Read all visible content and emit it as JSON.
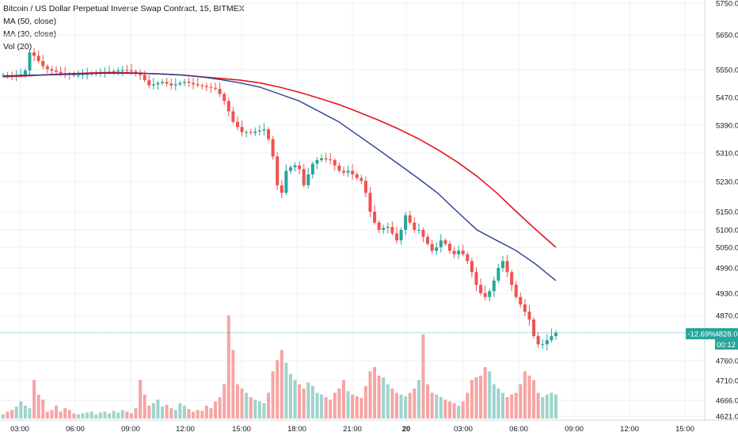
{
  "legend": {
    "symbol_line": "Bitcoin / US Dollar Perpetual Inverse Swap Contract, 15, BITMEX",
    "ma50": "MA (50, close)",
    "ma30": "MA (30, close)",
    "vol": "Vol (20)"
  },
  "badges": {
    "change": "-12.69%",
    "price": "4828.0",
    "countdown": "00:12"
  },
  "colors": {
    "up": "#26a69a",
    "down": "#ef5350",
    "up_vol": "#9ed4cc",
    "down_vol": "#f5a5a3",
    "ma50": "#e3171c",
    "ma30": "#2a3d8f",
    "grid": "#eef0f3",
    "last_price_line": "#26a69a",
    "axis_text": "#131722"
  },
  "chart_data": {
    "type": "candlestick",
    "interval": "15",
    "y_ticks": [
      "5750.0",
      "5650.0",
      "5550.0",
      "5470.0",
      "5390.0",
      "5310.0",
      "5230.0",
      "5150.0",
      "5100.0",
      "5050.0",
      "4990.0",
      "4930.0",
      "4870.0",
      "4760.0",
      "4710.0",
      "4666.0",
      "4621.0"
    ],
    "x_ticks": [
      "03:00",
      "06:00",
      "09:00",
      "12:00",
      "15:00",
      "18:00",
      "21:00",
      "20",
      "03:00",
      "06:00",
      "09:00",
      "12:00",
      "15:00"
    ],
    "last_price": 4828.0,
    "price_path": [
      5535,
      5533,
      5532,
      5534,
      5536,
      5548,
      5600,
      5590,
      5575,
      5560,
      5552,
      5548,
      5544,
      5540,
      5538,
      5536,
      5534,
      5535,
      5537,
      5538,
      5540,
      5541,
      5542,
      5543,
      5544,
      5546,
      5548,
      5549,
      5548,
      5545,
      5542,
      5535,
      5520,
      5505,
      5508,
      5512,
      5515,
      5510,
      5505,
      5508,
      5512,
      5515,
      5512,
      5508,
      5505,
      5503,
      5500,
      5498,
      5495,
      5480,
      5460,
      5430,
      5400,
      5385,
      5370,
      5370,
      5368,
      5372,
      5375,
      5378,
      5350,
      5300,
      5220,
      5200,
      5260,
      5270,
      5275,
      5265,
      5220,
      5250,
      5280,
      5290,
      5295,
      5292,
      5290,
      5275,
      5260,
      5255,
      5260,
      5250,
      5240,
      5232,
      5200,
      5150,
      5120,
      5100,
      5105,
      5108,
      5090,
      5070,
      5100,
      5140,
      5120,
      5100,
      5100,
      5080,
      5060,
      5040,
      5050,
      5070,
      5060,
      5040,
      5030,
      5040,
      5030,
      5010,
      4980,
      4950,
      4930,
      4920,
      4935,
      4960,
      4990,
      5010,
      4980,
      4950,
      4920,
      4900,
      4880,
      4860,
      4820,
      4800,
      4800,
      4810,
      4820,
      4828
    ],
    "volume": [
      5,
      8,
      10,
      14,
      20,
      15,
      12,
      45,
      28,
      22,
      8,
      10,
      15,
      8,
      12,
      10,
      6,
      5,
      6,
      7,
      8,
      5,
      7,
      8,
      6,
      9,
      7,
      10,
      8,
      6,
      12,
      45,
      28,
      15,
      18,
      22,
      14,
      16,
      12,
      10,
      18,
      15,
      11,
      8,
      10,
      9,
      15,
      12,
      20,
      25,
      40,
      120,
      80,
      40,
      35,
      30,
      25,
      22,
      20,
      18,
      30,
      55,
      68,
      80,
      65,
      52,
      45,
      40,
      35,
      42,
      38,
      30,
      28,
      25,
      22,
      30,
      35,
      45,
      32,
      28,
      26,
      24,
      38,
      55,
      60,
      50,
      48,
      40,
      35,
      30,
      28,
      26,
      30,
      35,
      45,
      98,
      40,
      30,
      28,
      25,
      22,
      20,
      18,
      15,
      20,
      30,
      45,
      48,
      50,
      60,
      55,
      40,
      35,
      30,
      25,
      28,
      30,
      40,
      55,
      50,
      45,
      30,
      25,
      28,
      30,
      28
    ],
    "ma30_path": [
      5532,
      5534,
      5535,
      5536,
      5538,
      5540,
      5540,
      5540,
      5538,
      5535,
      5530,
      5522,
      5512,
      5500,
      5480,
      5460,
      5430,
      5400,
      5360,
      5320,
      5280,
      5240,
      5200,
      5150,
      5100,
      5070,
      5040,
      5000,
      4960
    ],
    "ma50_path": [
      5530,
      5532,
      5535,
      5538,
      5540,
      5542,
      5542,
      5540,
      5538,
      5535,
      5530,
      5525,
      5520,
      5512,
      5500,
      5485,
      5468,
      5450,
      5428,
      5405,
      5380,
      5352,
      5320,
      5285,
      5245,
      5200,
      5150,
      5100,
      5050
    ]
  }
}
